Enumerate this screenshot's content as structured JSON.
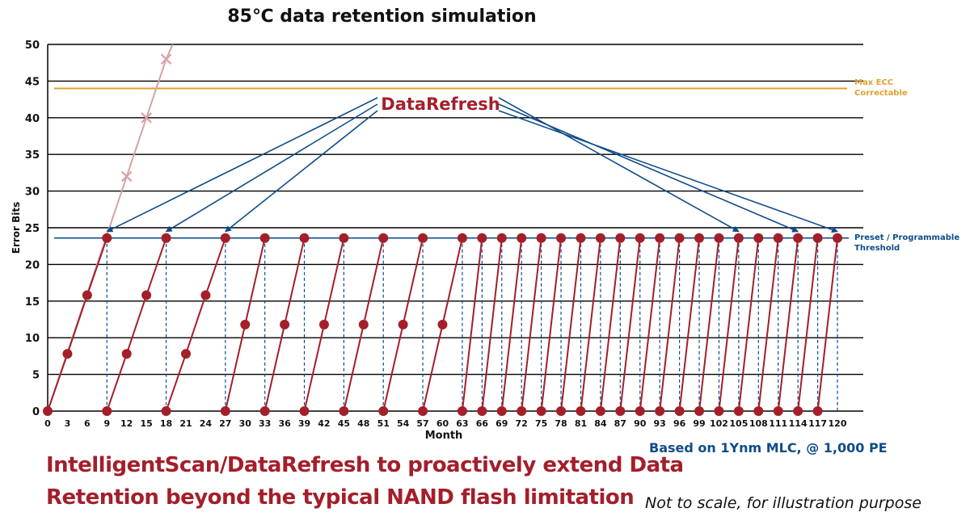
{
  "title": "85℃ data retention simulation",
  "headline_line1": "IntelligentScan/DataRefresh to proactively extend Data",
  "headline_line2": "Retention beyond the typical NAND flash limitation",
  "basis": "Based on 1Ynm MLC, @ 1,000 PE",
  "note": "Not to scale, for illustration purpose",
  "max_ecc_label_line1": "Max ECC",
  "max_ecc_label_line2": "Correctable",
  "threshold_label_line1": "Preset / Programmable",
  "threshold_label_line2": "Threshold",
  "colors": {
    "refresh": "#a31f2a",
    "no_refresh": "#d9a0a5",
    "threshold": "#0f4c8a",
    "max_ecc": "#e0a030",
    "grid": "#000000"
  },
  "chart_data": {
    "type": "line",
    "title": "85℃ data retention simulation",
    "xlabel": "Month",
    "ylabel": "Error Bits",
    "xlim": [
      0,
      120
    ],
    "ylim": [
      0,
      50
    ],
    "x_ticks": [
      0,
      3,
      6,
      9,
      12,
      15,
      18,
      21,
      24,
      27,
      30,
      33,
      36,
      39,
      42,
      45,
      48,
      51,
      54,
      57,
      60,
      63,
      66,
      69,
      72,
      75,
      78,
      81,
      84,
      87,
      90,
      93,
      96,
      99,
      102,
      105,
      108,
      111,
      114,
      117,
      120
    ],
    "y_ticks": [
      0,
      5,
      10,
      15,
      20,
      25,
      30,
      35,
      40,
      45,
      50
    ],
    "grid": "horizontal",
    "max_ecc_correctable": 44,
    "threshold": 23.6,
    "annotation": "DataRefresh",
    "series": [
      {
        "style": "without_refresh",
        "points": [
          [
            0,
            0
          ],
          [
            12,
            32
          ],
          [
            15,
            40
          ],
          [
            18,
            48
          ],
          [
            19,
            50
          ]
        ]
      },
      {
        "style": "refresh_cycle",
        "points": [
          [
            0,
            0
          ],
          [
            3,
            7.8
          ],
          [
            6,
            15.8
          ],
          [
            9,
            23.6
          ]
        ]
      },
      {
        "style": "refresh_cycle",
        "points": [
          [
            9,
            0
          ],
          [
            12,
            7.8
          ],
          [
            15,
            15.8
          ],
          [
            18,
            23.6
          ]
        ]
      },
      {
        "style": "refresh_cycle",
        "points": [
          [
            18,
            0
          ],
          [
            21,
            7.8
          ],
          [
            24,
            15.8
          ],
          [
            27,
            23.6
          ]
        ]
      },
      {
        "style": "refresh_cycle",
        "points": [
          [
            27,
            0
          ],
          [
            30,
            11.8
          ],
          [
            33,
            23.6
          ]
        ]
      },
      {
        "style": "refresh_cycle",
        "points": [
          [
            33,
            0
          ],
          [
            36,
            11.8
          ],
          [
            39,
            23.6
          ]
        ]
      },
      {
        "style": "refresh_cycle",
        "points": [
          [
            39,
            0
          ],
          [
            42,
            11.8
          ],
          [
            45,
            23.6
          ]
        ]
      },
      {
        "style": "refresh_cycle",
        "points": [
          [
            45,
            0
          ],
          [
            48,
            11.8
          ],
          [
            51,
            23.6
          ]
        ]
      },
      {
        "style": "refresh_cycle",
        "points": [
          [
            51,
            0
          ],
          [
            54,
            11.8
          ],
          [
            57,
            23.6
          ]
        ]
      },
      {
        "style": "refresh_cycle",
        "points": [
          [
            57,
            0
          ],
          [
            60,
            11.8
          ],
          [
            63,
            23.6
          ]
        ]
      },
      {
        "style": "refresh_cycle",
        "points": [
          [
            63,
            0
          ],
          [
            66,
            23.6
          ]
        ]
      },
      {
        "style": "refresh_cycle",
        "points": [
          [
            66,
            0
          ],
          [
            69,
            23.6
          ]
        ]
      },
      {
        "style": "refresh_cycle",
        "points": [
          [
            69,
            0
          ],
          [
            72,
            23.6
          ]
        ]
      },
      {
        "style": "refresh_cycle",
        "points": [
          [
            72,
            0
          ],
          [
            75,
            23.6
          ]
        ]
      },
      {
        "style": "refresh_cycle",
        "points": [
          [
            75,
            0
          ],
          [
            78,
            23.6
          ]
        ]
      },
      {
        "style": "refresh_cycle",
        "points": [
          [
            78,
            0
          ],
          [
            81,
            23.6
          ]
        ]
      },
      {
        "style": "refresh_cycle",
        "points": [
          [
            81,
            0
          ],
          [
            84,
            23.6
          ]
        ]
      },
      {
        "style": "refresh_cycle",
        "points": [
          [
            84,
            0
          ],
          [
            87,
            23.6
          ]
        ]
      },
      {
        "style": "refresh_cycle",
        "points": [
          [
            87,
            0
          ],
          [
            90,
            23.6
          ]
        ]
      },
      {
        "style": "refresh_cycle",
        "points": [
          [
            90,
            0
          ],
          [
            93,
            23.6
          ]
        ]
      },
      {
        "style": "refresh_cycle",
        "points": [
          [
            93,
            0
          ],
          [
            96,
            23.6
          ]
        ]
      },
      {
        "style": "refresh_cycle",
        "points": [
          [
            96,
            0
          ],
          [
            99,
            23.6
          ]
        ]
      },
      {
        "style": "refresh_cycle",
        "points": [
          [
            99,
            0
          ],
          [
            102,
            23.6
          ]
        ]
      },
      {
        "style": "refresh_cycle",
        "points": [
          [
            102,
            0
          ],
          [
            105,
            23.6
          ]
        ]
      },
      {
        "style": "refresh_cycle",
        "points": [
          [
            105,
            0
          ],
          [
            108,
            23.6
          ]
        ]
      },
      {
        "style": "refresh_cycle",
        "points": [
          [
            108,
            0
          ],
          [
            111,
            23.6
          ]
        ]
      },
      {
        "style": "refresh_cycle",
        "points": [
          [
            111,
            0
          ],
          [
            114,
            23.6
          ]
        ]
      },
      {
        "style": "refresh_cycle",
        "points": [
          [
            114,
            0
          ],
          [
            117,
            23.6
          ]
        ]
      },
      {
        "style": "refresh_cycle",
        "points": [
          [
            117,
            0
          ],
          [
            120,
            23.6
          ]
        ]
      }
    ],
    "arrow_targets": [
      9,
      18,
      27,
      105,
      114,
      120
    ]
  }
}
